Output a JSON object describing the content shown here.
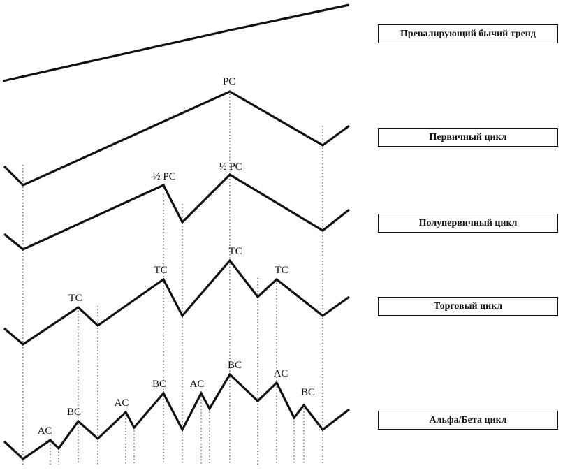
{
  "legend": [
    "Превалирующий бычий тренд",
    "Первичный цикл",
    "Полупервичный цикл",
    "Торговый цикл",
    "Альфа/Бета цикл"
  ],
  "labels": {
    "pc": "PC",
    "half_pc_1": "½ PC",
    "half_pc_2": "½ PC",
    "tc_1": "TC",
    "tc_2": "TC",
    "tc_3": "TC",
    "tc_4": "TC",
    "ac_1": "AC",
    "bc_1": "BC",
    "ac_2": "AC",
    "bc_2": "BC",
    "ac_3": "AC",
    "bc_3": "BC",
    "ac_4": "AC",
    "bc_4": "BC"
  }
}
